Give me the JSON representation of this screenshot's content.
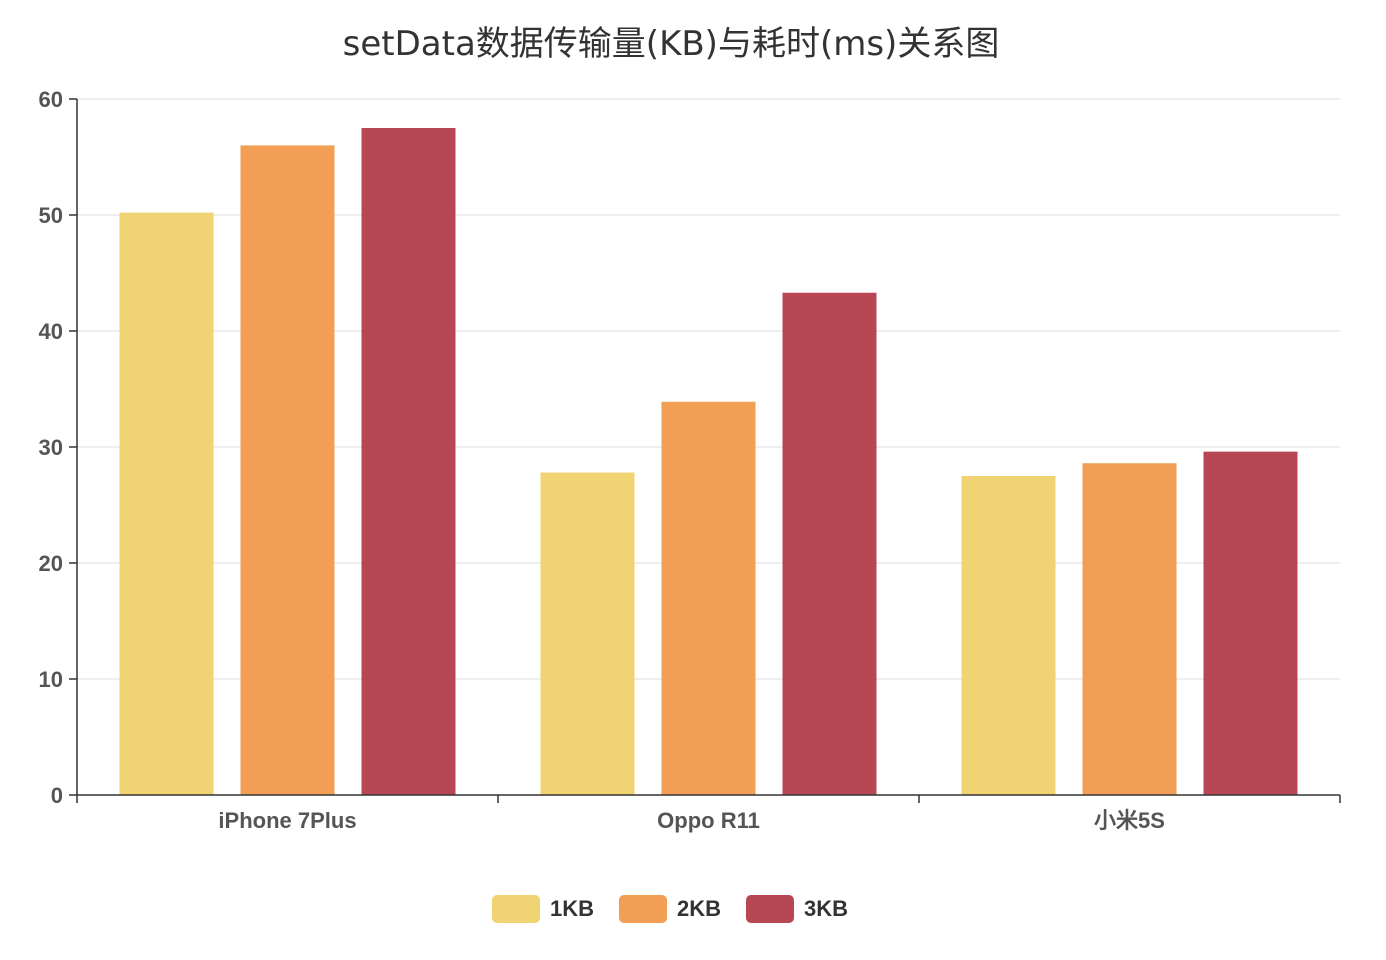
{
  "chart_data": {
    "type": "bar",
    "title": "setData数据传输量(KB)与耗时(ms)关系图",
    "categories": [
      "iPhone 7Plus",
      "Oppo R11",
      "小米5S"
    ],
    "series": [
      {
        "name": "1KB",
        "values": [
          50.2,
          27.8,
          27.5
        ],
        "color": "#f0d372"
      },
      {
        "name": "2KB",
        "values": [
          56.0,
          33.9,
          28.6
        ],
        "color": "#f29e54"
      },
      {
        "name": "3KB",
        "values": [
          57.5,
          43.3,
          29.6
        ],
        "color": "#b84755"
      }
    ],
    "ylim": [
      0,
      60
    ],
    "yticks": [
      0,
      10,
      20,
      30,
      40,
      50,
      60
    ],
    "grid": true,
    "legend_position": "bottom-center"
  }
}
